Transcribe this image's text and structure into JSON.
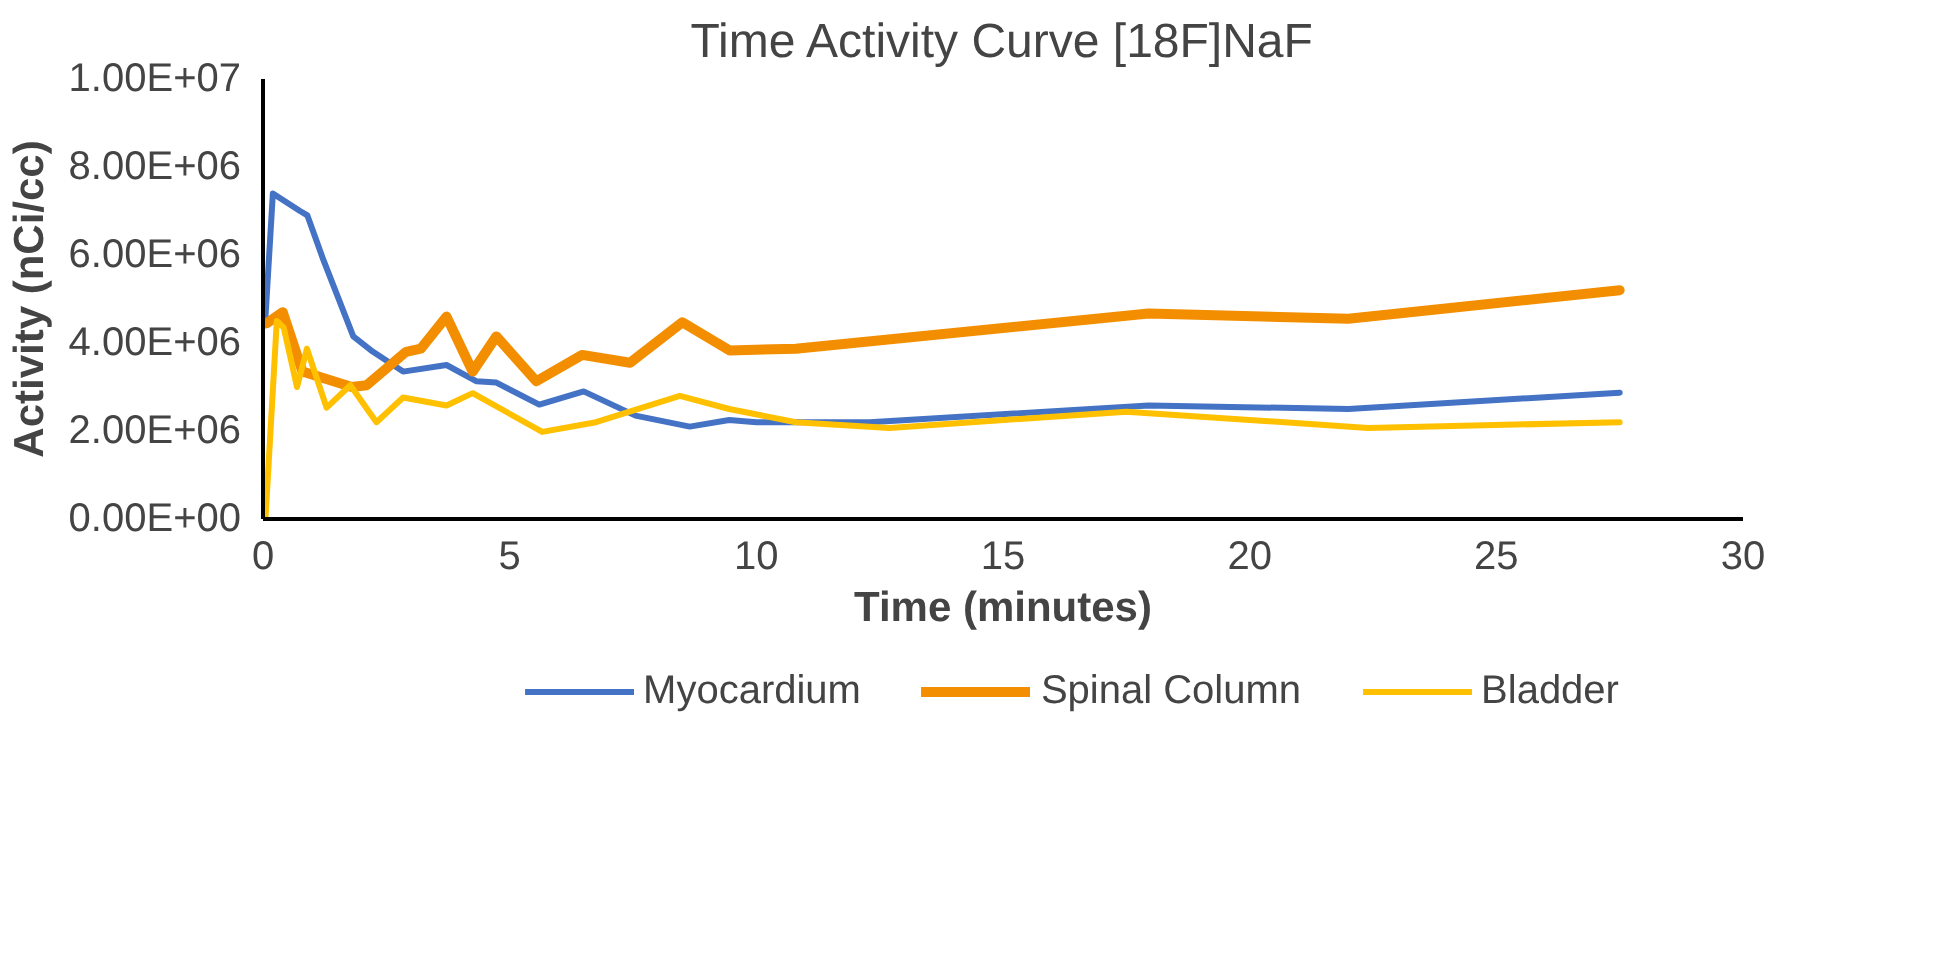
{
  "chart_data": {
    "type": "line",
    "title": "Time Activity Curve [18F]NaF",
    "xlabel": "Time (minutes)",
    "ylabel": "Activity (nCi/cc)",
    "xlim": [
      0,
      30
    ],
    "xticks": [
      0,
      5,
      10,
      15,
      20,
      25,
      30
    ],
    "ylim": [
      0,
      10000000
    ],
    "yticks": [
      {
        "value": 0,
        "label": "0.00E+00"
      },
      {
        "value": 2000000,
        "label": "2.00E+06"
      },
      {
        "value": 4000000,
        "label": "4.00E+06"
      },
      {
        "value": 6000000,
        "label": "6.00E+06"
      },
      {
        "value": 8000000,
        "label": "8.00E+06"
      },
      {
        "value": 10000000,
        "label": "1.00E+07"
      }
    ],
    "grid": false,
    "legend": "bottom",
    "marker": "none",
    "line_style": "solid",
    "series": [
      {
        "name": "Myocardium",
        "color": "#4472c4",
        "x": [
          0.04,
          0.2,
          0.75,
          0.9,
          1.22,
          1.83,
          2.23,
          2.84,
          3.72,
          4.33,
          4.73,
          5.6,
          6.5,
          7.55,
          8.65,
          9.45,
          10,
          12.3,
          17.95,
          22,
          27.5
        ],
        "values": [
          4400000,
          7400000,
          7000000,
          6900000,
          5900000,
          4150000,
          3800000,
          3350000,
          3500000,
          3130000,
          3100000,
          2600000,
          2900000,
          2350000,
          2100000,
          2250000,
          2200000,
          2200000,
          2580000,
          2500000,
          2870000
        ]
      },
      {
        "name": "Spinal Column",
        "color": "#f28e00",
        "x": [
          0.08,
          0.4,
          0.8,
          1.8,
          2.1,
          2.9,
          3.2,
          3.72,
          4.25,
          4.73,
          5.54,
          6.47,
          7.44,
          8.5,
          9.46,
          10.8,
          17.95,
          22,
          27.5
        ],
        "values": [
          4450000,
          4700000,
          3350000,
          3000000,
          3040000,
          3800000,
          3870000,
          4600000,
          3350000,
          4150000,
          3130000,
          3730000,
          3550000,
          4470000,
          3830000,
          3870000,
          4670000,
          4550000,
          5200000
        ]
      },
      {
        "name": "Bladder",
        "color": "#ffc000",
        "x": [
          0.05,
          0.28,
          0.42,
          0.69,
          0.89,
          1.29,
          1.77,
          2.3,
          2.84,
          3.72,
          4.25,
          5.66,
          6.75,
          8.45,
          9.45,
          10.8,
          12.7,
          17.5,
          22.4,
          27.5
        ],
        "values": [
          0,
          4500000,
          4350000,
          3000000,
          3870000,
          2530000,
          3040000,
          2200000,
          2760000,
          2580000,
          2860000,
          1980000,
          2200000,
          2800000,
          2500000,
          2200000,
          2070000,
          2440000,
          2070000,
          2200000
        ]
      }
    ]
  }
}
